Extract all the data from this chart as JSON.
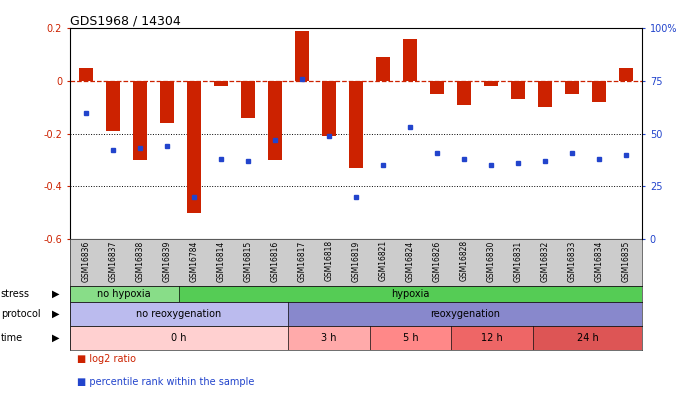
{
  "title": "GDS1968 / 14304",
  "samples": [
    "GSM16836",
    "GSM16837",
    "GSM16838",
    "GSM16839",
    "GSM16784",
    "GSM16814",
    "GSM16815",
    "GSM16816",
    "GSM16817",
    "GSM16818",
    "GSM16819",
    "GSM16821",
    "GSM16824",
    "GSM16826",
    "GSM16828",
    "GSM16830",
    "GSM16831",
    "GSM16832",
    "GSM16833",
    "GSM16834",
    "GSM16835"
  ],
  "log2_ratio": [
    0.05,
    -0.19,
    -0.3,
    -0.16,
    -0.5,
    -0.02,
    -0.14,
    -0.3,
    0.19,
    -0.21,
    -0.33,
    0.09,
    0.16,
    -0.05,
    -0.09,
    -0.02,
    -0.07,
    -0.1,
    -0.05,
    -0.08,
    0.05
  ],
  "percentile": [
    60,
    42,
    43,
    44,
    20,
    38,
    37,
    47,
    76,
    49,
    20,
    35,
    53,
    41,
    38,
    35,
    36,
    37,
    41,
    38,
    40
  ],
  "bar_color": "#cc2200",
  "dot_color": "#2244cc",
  "ylim_left": [
    -0.6,
    0.2
  ],
  "ylim_right": [
    0,
    100
  ],
  "yticks_left": [
    -0.6,
    -0.4,
    -0.2,
    0.0,
    0.2
  ],
  "yticks_right": [
    0,
    25,
    50,
    75,
    100
  ],
  "ytick_labels_right": [
    "0",
    "25",
    "50",
    "75",
    "100%"
  ],
  "hlines_dotted": [
    -0.2,
    -0.4
  ],
  "stress_groups": [
    {
      "label": "no hypoxia",
      "start": 0,
      "end": 4,
      "color": "#88dd88"
    },
    {
      "label": "hypoxia",
      "start": 4,
      "end": 21,
      "color": "#55cc55"
    }
  ],
  "protocol_groups": [
    {
      "label": "no reoxygenation",
      "start": 0,
      "end": 8,
      "color": "#bbbbee"
    },
    {
      "label": "reoxygenation",
      "start": 8,
      "end": 21,
      "color": "#8888cc"
    }
  ],
  "time_groups": [
    {
      "label": "0 h",
      "start": 0,
      "end": 8,
      "color": "#ffd0d0"
    },
    {
      "label": "3 h",
      "start": 8,
      "end": 11,
      "color": "#ffaaaa"
    },
    {
      "label": "5 h",
      "start": 11,
      "end": 14,
      "color": "#ff8888"
    },
    {
      "label": "12 h",
      "start": 14,
      "end": 17,
      "color": "#ee6666"
    },
    {
      "label": "24 h",
      "start": 17,
      "end": 21,
      "color": "#dd5555"
    }
  ],
  "row_labels": [
    "stress",
    "protocol",
    "time"
  ],
  "legend_items": [
    {
      "label": "log2 ratio",
      "color": "#cc2200"
    },
    {
      "label": "percentile rank within the sample",
      "color": "#2244cc"
    }
  ]
}
